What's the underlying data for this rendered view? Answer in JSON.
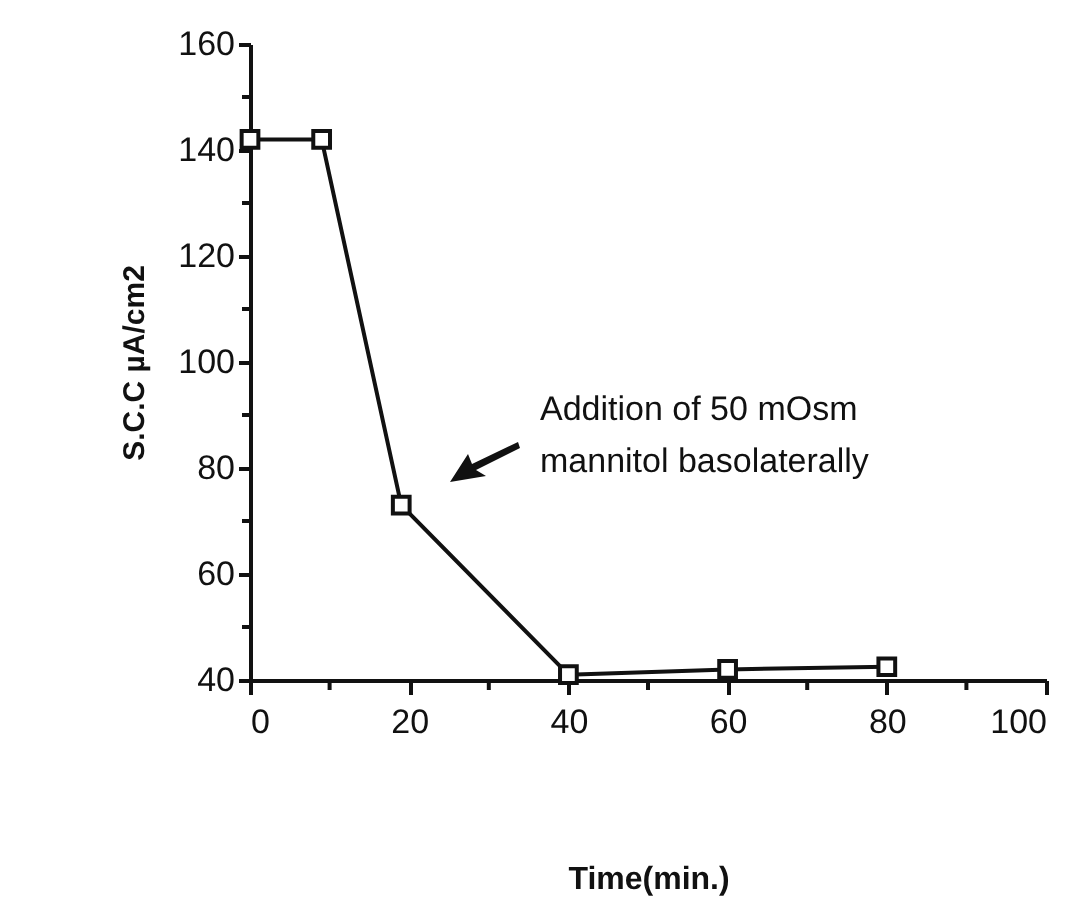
{
  "chart_data": {
    "type": "line",
    "xlabel": "Time(min.)",
    "ylabel": "S.C.C   µA/cm2",
    "x": [
      0,
      9,
      19,
      40,
      60,
      80
    ],
    "series": [
      {
        "color": "#111111",
        "values": [
          142,
          142,
          73,
          41,
          42,
          42.5
        ]
      }
    ],
    "xlim": [
      0,
      100
    ],
    "ylim": [
      40,
      160
    ],
    "xticks": [
      0,
      {
        "value": 10,
        "label": null
      },
      20,
      {
        "value": 30,
        "label": null
      },
      40,
      {
        "value": 50,
        "label": null
      },
      60,
      {
        "value": 70,
        "label": null
      },
      80,
      {
        "value": 90,
        "label": null
      },
      100
    ],
    "yticks": [
      40,
      {
        "value": 50,
        "label": null
      },
      60,
      {
        "value": 70,
        "label": null
      },
      80,
      {
        "value": 90,
        "label": null
      },
      100,
      {
        "value": 110,
        "label": null
      },
      120,
      {
        "value": 130,
        "label": null
      },
      140,
      {
        "value": 150,
        "label": null
      },
      160
    ],
    "marker": "square",
    "line_style": "solid",
    "grid": false,
    "annotations": [
      "Addition of 50 mOsm mannitol basolaterally"
    ]
  }
}
